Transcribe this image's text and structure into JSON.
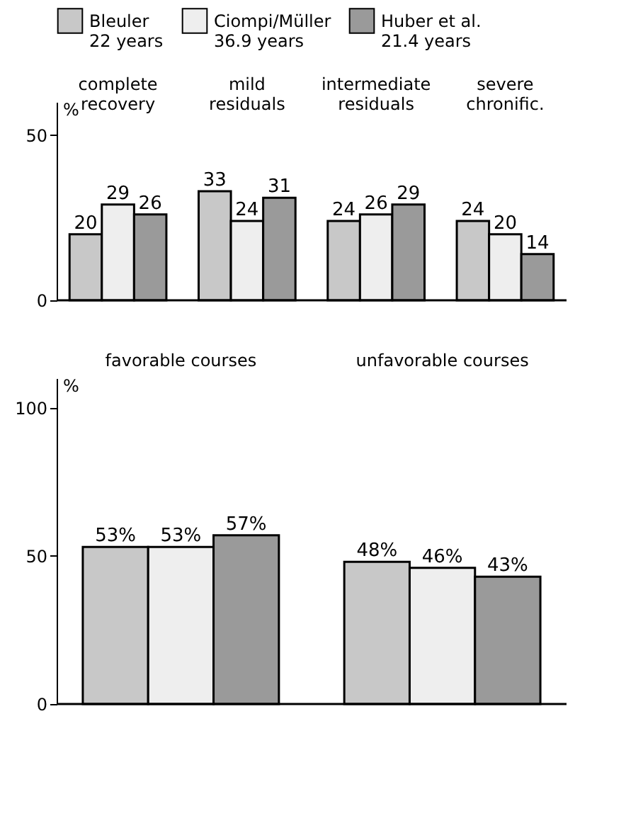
{
  "chart_data": [
    {
      "type": "bar",
      "categories": [
        "complete\nrecovery",
        "mild\nresiduals",
        "intermediate\nresiduals",
        "severe\nchronific."
      ],
      "ylabel": "%",
      "ylim": [
        0,
        60
      ],
      "yticks": [
        0,
        50
      ],
      "legend": "top",
      "data_labels": true,
      "grid": false,
      "series": [
        {
          "name": "Bleuler\n22 years",
          "color": "#c8c8c8",
          "values": [
            20,
            33,
            24,
            24
          ]
        },
        {
          "name": "Ciompi/Müller\n36.9 years",
          "color": "#eeeeee",
          "values": [
            29,
            24,
            26,
            20
          ]
        },
        {
          "name": "Huber et al.\n21.4 years",
          "color": "#9a9a9a",
          "values": [
            26,
            31,
            29,
            14
          ]
        }
      ]
    },
    {
      "type": "bar",
      "categories": [
        "favorable courses",
        "unfavorable courses"
      ],
      "ylabel": "%",
      "ylim": [
        0,
        110
      ],
      "yticks": [
        0,
        50,
        100
      ],
      "legend": false,
      "grid": false,
      "series": [
        {
          "color": "#c8c8c8",
          "values": [
            53,
            48
          ],
          "value_labels": [
            "53%",
            "48%"
          ]
        },
        {
          "color": "#eeeeee",
          "values": [
            53,
            46
          ],
          "value_labels": [
            "53%",
            "46%"
          ]
        },
        {
          "color": "#9a9a9a",
          "values": [
            57,
            43
          ],
          "value_labels": [
            "57%",
            "43%"
          ]
        }
      ]
    }
  ]
}
